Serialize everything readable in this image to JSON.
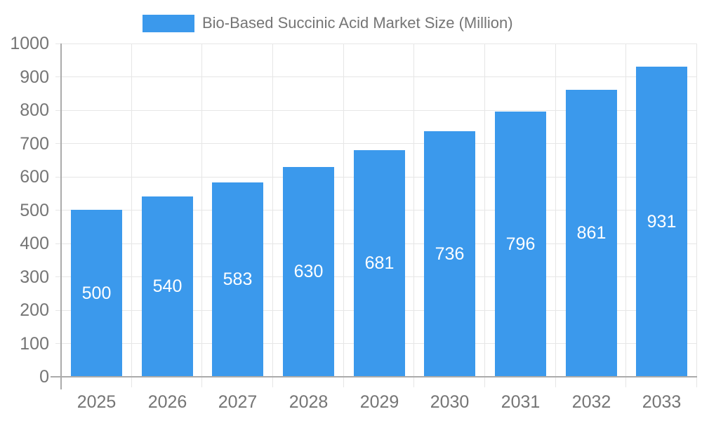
{
  "legend": {
    "label": "Bio-Based Succinic Acid Market Size (Million)",
    "swatch_color": "#3B99EC"
  },
  "chart_data": {
    "type": "bar",
    "title": "Bio-Based Succinic Acid Market Size (Million)",
    "categories": [
      "2025",
      "2026",
      "2027",
      "2028",
      "2029",
      "2030",
      "2031",
      "2032",
      "2033"
    ],
    "values": [
      500,
      540,
      583,
      630,
      681,
      736,
      796,
      861,
      931
    ],
    "xlabel": "",
    "ylabel": "",
    "ylim": [
      0,
      1000
    ],
    "y_ticks": [
      0,
      100,
      200,
      300,
      400,
      500,
      600,
      700,
      800,
      900,
      1000
    ],
    "grid": true,
    "legend_position": "top",
    "bar_labels_shown": true,
    "bar_label_position": "center",
    "colors": {
      "bar": "#3B99EC",
      "bar_label": "#FFFFFF",
      "axis_text": "#757575",
      "gridline": "#E6E6E6",
      "axis_line": "#ABABAB"
    }
  }
}
